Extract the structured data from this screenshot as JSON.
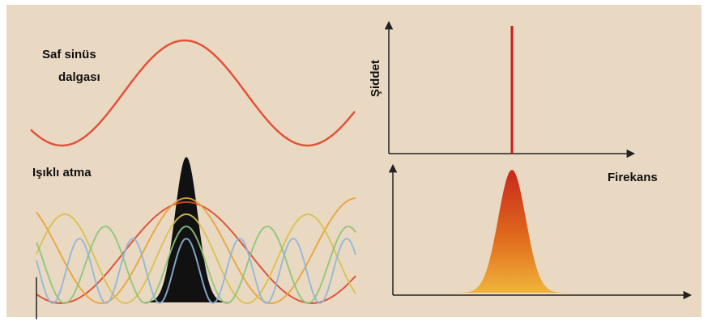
{
  "left_panel": {
    "top_label_lines": [
      "Saf sinüs",
      "dalgası"
    ],
    "bottom_label": "Işıklı atma"
  },
  "right_panel": {
    "y_axis_label": "Şiddet",
    "x_axis_label": "Firekans"
  }
}
